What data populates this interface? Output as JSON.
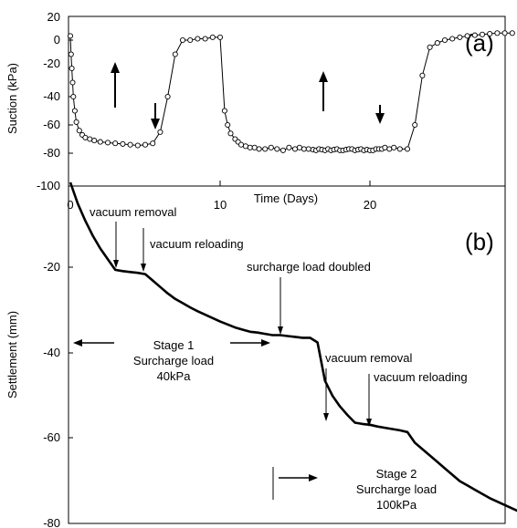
{
  "chart_data": [
    {
      "panel_label": "(a)",
      "type": "line",
      "xlabel": "Time (Days)",
      "ylabel": "Suction (kPa)",
      "xlim": [
        0,
        30
      ],
      "ylim": [
        -100,
        20
      ],
      "xticks": [
        "0",
        "10",
        "20"
      ],
      "yticks": [
        "20",
        "0",
        "-20",
        "-40",
        "-60",
        "-80",
        "-100"
      ],
      "marker": "open-circle",
      "series": [
        {
          "x": [
            0,
            0.05,
            0.1,
            0.15,
            0.2,
            0.3,
            0.4,
            0.6,
            0.8,
            1.0,
            1.3,
            1.6,
            2,
            2.5,
            3,
            3.5,
            4,
            4.5,
            5,
            5.5,
            6,
            6.5,
            7,
            7.5,
            8,
            8.5,
            9,
            9.5,
            10,
            10.3,
            10.5,
            10.7,
            11,
            11.2,
            11.4,
            11.7,
            12,
            12.3,
            12.6,
            13,
            13.4,
            13.8,
            14.2,
            14.6,
            15,
            15.3,
            15.6,
            15.9,
            16.2,
            16.4,
            16.6,
            16.8,
            17,
            17.2,
            17.4,
            17.6,
            17.8,
            18,
            18.2,
            18.4,
            18.6,
            18.8,
            19,
            19.2,
            19.4,
            19.6,
            19.8,
            20,
            20.2,
            20.4,
            20.6,
            20.8,
            21,
            21.3,
            21.6,
            22,
            22.5,
            23,
            23.5,
            24,
            24.5,
            25,
            25.5,
            26,
            26.5,
            27,
            27.5,
            28,
            28.5,
            29,
            29.5
          ],
          "y": [
            3,
            -10,
            -20,
            -30,
            -40,
            -50,
            -58,
            -64,
            -67,
            -69,
            -70,
            -71,
            -72,
            -72.5,
            -73,
            -73.5,
            -74,
            -74.5,
            -74,
            -73,
            -65,
            -40,
            -10,
            0,
            0,
            1,
            1,
            2,
            2,
            -50,
            -60,
            -66,
            -70,
            -72,
            -74,
            -75,
            -76,
            -76,
            -77,
            -77,
            -76,
            -77,
            -78,
            -76,
            -77,
            -76,
            -77,
            -77,
            -77.5,
            -78,
            -77,
            -77.5,
            -78,
            -77,
            -78,
            -77.5,
            -77,
            -78,
            -78,
            -77.5,
            -77,
            -77,
            -78,
            -77.5,
            -77,
            -78,
            -77.5,
            -78,
            -78,
            -77,
            -77,
            -77,
            -76,
            -77,
            -76,
            -77,
            -77,
            -60,
            -25,
            -5,
            -2,
            0,
            1,
            2,
            3,
            3.5,
            4,
            4.5,
            5,
            5,
            5
          ]
        }
      ]
    },
    {
      "panel_label": "(b)",
      "type": "line",
      "xlabel": "",
      "ylabel": "Settlement (mm)",
      "xlim": [
        0,
        30
      ],
      "ylim": [
        -80,
        0
      ],
      "yticks": [
        "-20",
        "-40",
        "-60",
        "-80"
      ],
      "series": [
        {
          "x": [
            0,
            0.5,
            1,
            1.5,
            2,
            2.5,
            3,
            3.5,
            4,
            4.5,
            5,
            5.5,
            6,
            6.5,
            7,
            7.5,
            8,
            8.5,
            9,
            9.5,
            10,
            10.5,
            11,
            11.5,
            12,
            12.5,
            13,
            13.5,
            14,
            14.5,
            15,
            15.5,
            16,
            16.5,
            17,
            17.5,
            18,
            18.5,
            19,
            19.5,
            20,
            20.5,
            21,
            21.5,
            22,
            22.5,
            23,
            23.5,
            24,
            24.5,
            25,
            25.5,
            26,
            26.5,
            27,
            27.5,
            28,
            28.5,
            29,
            29.5,
            30
          ],
          "y": [
            0,
            -5,
            -9,
            -12.5,
            -15.5,
            -18,
            -20.5,
            -20.8,
            -21,
            -21.2,
            -21.5,
            -23,
            -24.5,
            -26,
            -27.3,
            -28.3,
            -29.3,
            -30.2,
            -31,
            -31.8,
            -32.6,
            -33.3,
            -34,
            -34.5,
            -35,
            -35.2,
            -35.5,
            -35.8,
            -35.8,
            -36,
            -36.2,
            -36.4,
            -36.4,
            -37.5,
            -46.5,
            -50,
            -52.5,
            -54.5,
            -56.3,
            -56.6,
            -56.8,
            -57.2,
            -57.5,
            -57.8,
            -58.1,
            -58.5,
            -61,
            -62.5,
            -64,
            -65.5,
            -67,
            -68.5,
            -70,
            -71,
            -72,
            -73,
            -74,
            -74.8,
            -75.6,
            -76.4,
            -77.2
          ]
        }
      ],
      "annotations": {
        "vacuum_removal_1": "vacuum removal",
        "vacuum_reloading_1": "vacuum reloading",
        "surcharge_doubled": "surcharge load doubled",
        "stage1_line1": "Stage 1",
        "stage1_line2": "Surcharge load",
        "stage1_line3": "40kPa",
        "vacuum_removal_2": "vacuum removal",
        "vacuum_reloading_2": "vacuum reloading",
        "stage2_line1": "Stage 2",
        "stage2_line2": "Surcharge load",
        "stage2_line3": "100kPa"
      }
    }
  ]
}
